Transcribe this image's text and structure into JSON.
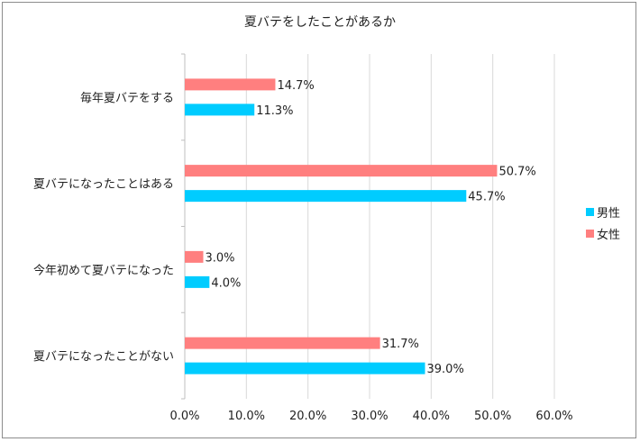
{
  "chart_data": {
    "type": "bar",
    "orientation": "horizontal",
    "title": "夏バテをしたことがあるか",
    "categories": [
      "毎年夏バテをする",
      "夏バテになったことはある",
      "今年初めて夏バテになった",
      "夏バテになったことがない"
    ],
    "series": [
      {
        "name": "女性",
        "color": "#ff7f7f",
        "values": [
          14.7,
          50.7,
          3.0,
          31.7
        ]
      },
      {
        "name": "男性",
        "color": "#00ccff",
        "values": [
          11.3,
          45.7,
          4.0,
          39.0
        ]
      }
    ],
    "value_labels": {
      "女性": [
        "14.7%",
        "50.7%",
        "3.0%",
        "31.7%"
      ],
      "男性": [
        "11.3%",
        "45.7%",
        "4.0%",
        "39.0%"
      ]
    },
    "x_ticks": [
      "0.0%",
      "10.0%",
      "20.0%",
      "30.0%",
      "40.0%",
      "50.0%",
      "60.0%"
    ],
    "xlim": [
      0,
      60
    ],
    "grid": "vertical",
    "legend": {
      "placement": "right",
      "items": [
        {
          "name": "男性",
          "color": "#00ccff"
        },
        {
          "name": "女性",
          "color": "#ff7f7f"
        }
      ]
    }
  }
}
